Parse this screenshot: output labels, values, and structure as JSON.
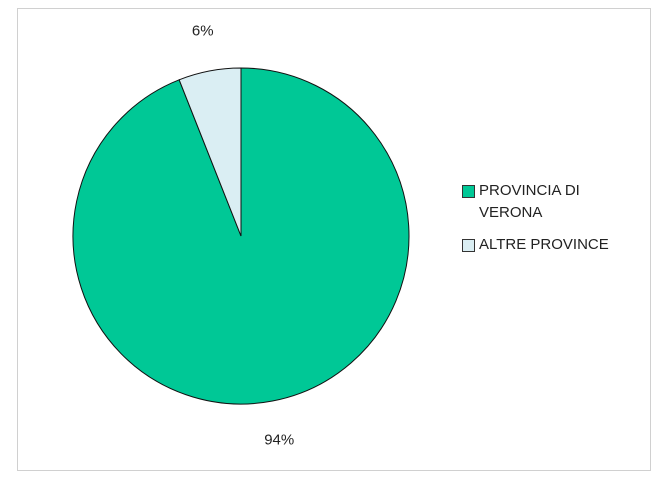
{
  "chart_data": {
    "type": "pie",
    "categories": [
      "PROVINCIA DI VERONA",
      "ALTRE PROVINCE"
    ],
    "values": [
      94,
      6
    ],
    "value_labels": [
      "94%",
      "6%"
    ],
    "colors": [
      "#00C896",
      "#DAEEF3"
    ]
  }
}
